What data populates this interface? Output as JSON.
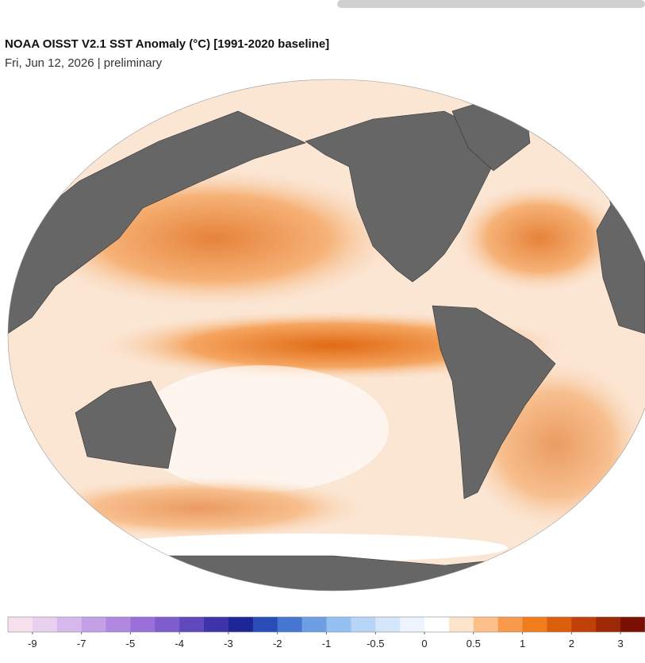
{
  "title": "NOAA OISST V2.1 SST Anomaly (°C) [1991-2020 baseline]",
  "subtitle": "Fri, Jun 12, 2026 | preliminary",
  "colorbar": {
    "colors": [
      "#f7e1ee",
      "#e8d0ef",
      "#d6b8ec",
      "#c4a0e6",
      "#b088e0",
      "#9a70d8",
      "#7f5ccc",
      "#6048bd",
      "#3c34a8",
      "#1e2596",
      "#2a4cb8",
      "#4577d0",
      "#6e9fe4",
      "#95c0f2",
      "#b6d5f7",
      "#d3e6fa",
      "#edf4fd",
      "#ffffff",
      "#fde4cc",
      "#fbbf8a",
      "#f79a4c",
      "#f07c1c",
      "#db5e0c",
      "#c04008",
      "#9c2806",
      "#7a1004"
    ],
    "ticks": [
      -9,
      -7,
      -5,
      -4,
      -3,
      -2,
      -1,
      -0.5,
      0,
      0.5,
      1,
      2,
      3
    ]
  }
}
